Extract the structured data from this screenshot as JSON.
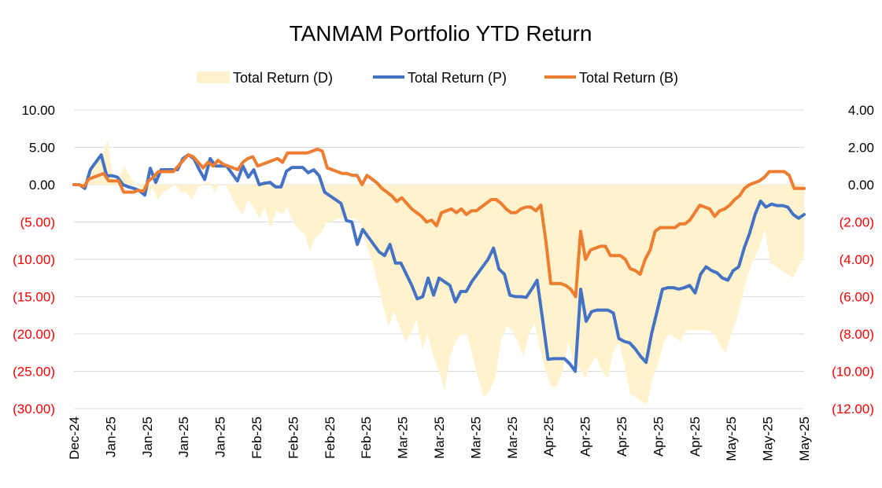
{
  "chart_data": {
    "type": "line",
    "title": "TANMAM Portfolio YTD Return",
    "legend": {
      "placement": "top",
      "entries": [
        {
          "name": "Total Return (D)",
          "color": "#fff2cc",
          "style": "area"
        },
        {
          "name": "Total Return (P)",
          "color": "#4472c4",
          "style": "line"
        },
        {
          "name": "Total Return (B)",
          "color": "#ed7d31",
          "style": "line"
        }
      ]
    },
    "grid": true,
    "negative_tick_color": "#ff0000",
    "x_tick_labels": [
      "Dec-24",
      "Jan-25",
      "Jan-25",
      "Jan-25",
      "Jan-25",
      "Feb-25",
      "Feb-25",
      "Feb-25",
      "Feb-25",
      "Mar-25",
      "Mar-25",
      "Mar-25",
      "Mar-25",
      "Apr-25",
      "Apr-25",
      "Apr-25",
      "Apr-25",
      "Apr-25",
      "May-25",
      "May-25",
      "May-25"
    ],
    "y_left": {
      "ylim": [
        -30,
        10
      ],
      "ticks": [
        10,
        5,
        0,
        -5,
        -10,
        -15,
        -20,
        -25,
        -30
      ],
      "tick_labels": [
        "10.00",
        "5.00",
        "0.00",
        "(5.00)",
        "(10.00)",
        "(15.00)",
        "(20.00)",
        "(25.00)",
        "(30.00)"
      ]
    },
    "y_right": {
      "ylim": [
        -12,
        4
      ],
      "ticks": [
        4,
        2,
        0,
        -2,
        -4,
        -6,
        -8,
        -10,
        -12
      ],
      "tick_labels": [
        "4.00",
        "2.00",
        "0.00",
        "(2.00)",
        "(4.00)",
        "(6.00)",
        "(8.00)",
        "(10.00)",
        "(12.00)"
      ]
    },
    "series": [
      {
        "name": "Total Return (D)",
        "type": "area",
        "axis": "left",
        "color": "#fff2cc",
        "values": [
          0,
          0,
          0.3,
          2,
          3,
          4,
          6,
          0.5,
          1,
          2.5,
          1,
          0,
          -0.5,
          -1,
          -0.5,
          -2,
          -1,
          -0.5,
          0,
          -1,
          -1,
          -2,
          -0.5,
          0,
          0.5,
          -1,
          0,
          0,
          -1.5,
          -3,
          -4,
          -2,
          -3,
          -4.5,
          -3,
          -6,
          -3.5,
          -4,
          -3,
          -5,
          -6,
          -6.5,
          -9,
          -7,
          -6.5,
          -5,
          -5,
          -4.5,
          -4.5,
          -4.5,
          -4.5,
          -5,
          -8,
          -10,
          -13,
          -16,
          -19,
          -17,
          -19,
          -21,
          -20,
          -18,
          -22,
          -20,
          -23,
          -25,
          -27.5,
          -23,
          -21,
          -20,
          -20,
          -23,
          -26,
          -28.5,
          -27.5,
          -26,
          -21,
          -19,
          -19.5,
          -21,
          -23,
          -20,
          -18.5,
          -22,
          -25,
          -27,
          -27,
          -25,
          -21,
          -24,
          -24.5,
          -26,
          -24,
          -23,
          -25,
          -26,
          -22.5,
          -21,
          -24,
          -28,
          -28.5,
          -29,
          -29.5,
          -26,
          -24,
          -21,
          -20,
          -20.5,
          -21,
          -19.5,
          -19.5,
          -19.5,
          -19.5,
          -19.5,
          -20,
          -21.5,
          -22.5,
          -20,
          -18,
          -15,
          -12,
          -10,
          -8.5,
          -6,
          -10.5,
          -11,
          -11.5,
          -12,
          -12.5,
          -11,
          -9.5
        ]
      },
      {
        "name": "Total Return (P)",
        "type": "line",
        "axis": "left",
        "color": "#4472c4",
        "values": [
          0,
          0,
          -0.5,
          2,
          3,
          4,
          1.2,
          1.2,
          1,
          0,
          -0.3,
          -0.5,
          -0.8,
          -1.4,
          2.2,
          0.3,
          2,
          2,
          2,
          2,
          3.5,
          4,
          3.5,
          2,
          0.7,
          3.5,
          2.5,
          2.5,
          2.5,
          1.5,
          0.5,
          2.5,
          1,
          2,
          0,
          0.2,
          0.3,
          -0.3,
          -0.3,
          1.8,
          2.3,
          2.3,
          2.3,
          1.6,
          2,
          1.2,
          -1,
          -1.5,
          -2,
          -2.5,
          -4.8,
          -5,
          -8,
          -6,
          -7,
          -8,
          -9,
          -9.5,
          -8,
          -10.5,
          -10.5,
          -12,
          -13.5,
          -15.3,
          -15,
          -12.5,
          -14.8,
          -12.5,
          -13,
          -13.5,
          -15.7,
          -14.3,
          -14.3,
          -13,
          -12,
          -11,
          -10,
          -8.5,
          -11.3,
          -12,
          -14.8,
          -15,
          -15,
          -15.1,
          -14,
          -12.8,
          -18,
          -23.4,
          -23.3,
          -23.3,
          -23.3,
          -24,
          -25,
          -14,
          -18.3,
          -17,
          -16.8,
          -16.8,
          -16.8,
          -17.2,
          -20.6,
          -21,
          -21.2,
          -22,
          -23,
          -23.8,
          -20,
          -17,
          -14,
          -13.8,
          -13.8,
          -14,
          -13.8,
          -13.5,
          -14.5,
          -12,
          -11,
          -11.5,
          -11.8,
          -12.5,
          -12.8,
          -11.5,
          -11,
          -8.5,
          -6.5,
          -4,
          -2.2,
          -3,
          -2.6,
          -2.8,
          -2.8,
          -3,
          -4,
          -4.5,
          -4
        ]
      },
      {
        "name": "Total Return (B)",
        "type": "line",
        "axis": "right",
        "color": "#ed7d31",
        "values": [
          0,
          0,
          -0.1,
          0.3,
          0.4,
          0.5,
          0.6,
          0.2,
          0.2,
          0.2,
          -0.4,
          -0.4,
          -0.4,
          -0.3,
          -0.35,
          0.2,
          0.4,
          0.7,
          0.7,
          0.7,
          0.7,
          1,
          1.3,
          1.6,
          1.5,
          1.2,
          0.9,
          1.2,
          1,
          1.3,
          1.1,
          1,
          0.9,
          0.8,
          1.2,
          1.4,
          1.5,
          1,
          1.1,
          1.2,
          1.3,
          1.4,
          1.2,
          1.7,
          1.7,
          1.7,
          1.7,
          1.7,
          1.8,
          1.9,
          1.8,
          0.9,
          0.8,
          0.7,
          0.6,
          0.6,
          0.5,
          0.5,
          0,
          0.5,
          0.3,
          0.1,
          -0.2,
          -0.4,
          -0.6,
          -0.9,
          -0.7,
          -1,
          -1.3,
          -1.5,
          -1.7,
          -2,
          -1.9,
          -2.2,
          -1.5,
          -1.4,
          -1.3,
          -1.5,
          -1.3,
          -1.6,
          -1.4,
          -1.4,
          -1.2,
          -1,
          -0.8,
          -0.8,
          -1,
          -1.3,
          -1.5,
          -1.5,
          -1.3,
          -1.2,
          -1.2,
          -1.4,
          -1.1,
          -3,
          -5.3,
          -5.3,
          -5.3,
          -5.4,
          -5.6,
          -6,
          -2.5,
          -4,
          -3.5,
          -3.4,
          -3.3,
          -3.3,
          -3.8,
          -3.8,
          -3.8,
          -4,
          -4.5,
          -4.6,
          -4.8,
          -4,
          -3.5,
          -2.5,
          -2.3,
          -2.3,
          -2.3,
          -2.3,
          -2.1,
          -2.1,
          -1.9,
          -1.5,
          -1.1,
          -1.2,
          -1.3,
          -1.7,
          -1.4,
          -1.3,
          -1.1,
          -0.8,
          -0.6,
          -0.2,
          0,
          0.1,
          0.2,
          0.4,
          0.7,
          0.7,
          0.7,
          0.7,
          0.5,
          -0.2,
          -0.2,
          -0.2
        ]
      }
    ]
  }
}
